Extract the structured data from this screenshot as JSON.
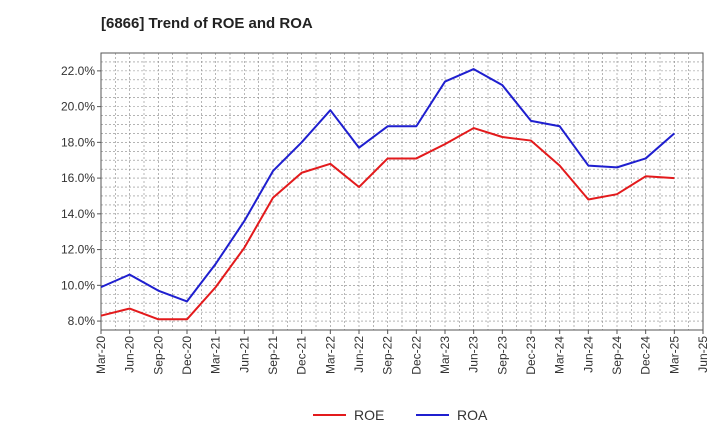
{
  "title": "[6866]  Trend of ROE and ROA",
  "chart_data": {
    "type": "line",
    "title": "[6866]  Trend of ROE and ROA",
    "xlabel": "",
    "ylabel": "",
    "x_tick_labels": [
      "Mar-20",
      "Jun-20",
      "Sep-20",
      "Dec-20",
      "Mar-21",
      "Jun-21",
      "Sep-21",
      "Dec-21",
      "Mar-22",
      "Jun-22",
      "Sep-22",
      "Dec-22",
      "Mar-23",
      "Jun-23",
      "Sep-23",
      "Dec-23",
      "Mar-24",
      "Jun-24",
      "Sep-24",
      "Dec-24",
      "Mar-25",
      "Jun-25"
    ],
    "y_tick_labels": [
      "8.0%",
      "10.0%",
      "12.0%",
      "14.0%",
      "16.0%",
      "18.0%",
      "20.0%",
      "22.0%"
    ],
    "y_ticks": [
      8,
      10,
      12,
      14,
      16,
      18,
      20,
      22
    ],
    "ylim": [
      7.5,
      23.0
    ],
    "grid": true,
    "legend_position": "bottom",
    "x": [
      "Mar-20",
      "Jun-20",
      "Sep-20",
      "Dec-20",
      "Mar-21",
      "Jun-21",
      "Sep-21",
      "Dec-21",
      "Mar-22",
      "Jun-22",
      "Sep-22",
      "Dec-22",
      "Mar-23",
      "Jun-23",
      "Sep-23",
      "Dec-23",
      "Mar-24",
      "Jun-24",
      "Sep-24",
      "Dec-24",
      "Mar-25"
    ],
    "series": [
      {
        "name": "ROE",
        "color": "#e31a1c",
        "values": [
          8.3,
          8.7,
          8.1,
          8.1,
          9.9,
          12.1,
          14.9,
          16.3,
          16.8,
          15.5,
          17.1,
          17.1,
          17.9,
          18.8,
          18.3,
          18.1,
          16.7,
          14.8,
          15.1,
          16.1,
          16.0
        ]
      },
      {
        "name": "ROA",
        "color": "#1f1fcf",
        "values": [
          9.9,
          10.6,
          9.7,
          9.1,
          11.2,
          13.6,
          16.4,
          18.0,
          19.8,
          17.7,
          18.9,
          18.9,
          21.4,
          22.1,
          21.2,
          19.2,
          18.9,
          16.7,
          16.6,
          17.1,
          18.5
        ]
      }
    ]
  }
}
